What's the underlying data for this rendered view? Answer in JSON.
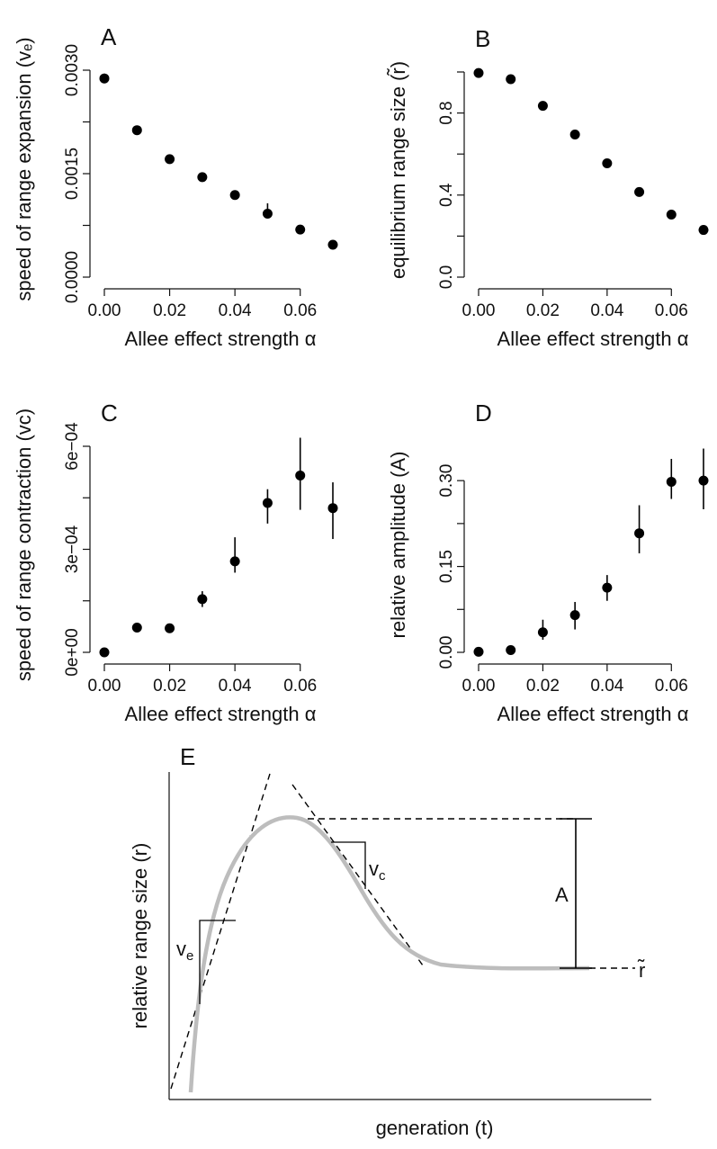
{
  "chart_data": [
    {
      "id": "A",
      "type": "scatter",
      "panel_label": "A",
      "xlabel": "Allee effect strength α",
      "ylabel": "speed of range expansion (vₑ)",
      "xlim": [
        0,
        0.07
      ],
      "ylim": [
        0,
        0.003
      ],
      "xticks": [
        0,
        0.02,
        0.04,
        0.06
      ],
      "xtick_labels": [
        "0.00",
        "0.02",
        "0.04",
        "0.06"
      ],
      "yticks": [
        0,
        0.0015,
        0.003
      ],
      "ytick_labels": [
        "0.0000",
        "0.0015",
        "0.0030"
      ],
      "yticks_unlabeled": [
        0.00075,
        0.00225
      ],
      "x": [
        0,
        0.01,
        0.02,
        0.03,
        0.04,
        0.05,
        0.06,
        0.07
      ],
      "y": [
        0.00288,
        0.00213,
        0.00171,
        0.00145,
        0.00119,
        0.00092,
        0.00069,
        0.00047
      ],
      "err_low": [
        0.00281,
        0.00213,
        0.00171,
        0.00139,
        0.00119,
        0.00086,
        0.00069,
        0.00042
      ],
      "err_high": [
        0.00295,
        0.00213,
        0.00171,
        0.00151,
        0.00119,
        0.00107,
        0.00069,
        0.00052
      ]
    },
    {
      "id": "B",
      "type": "scatter",
      "panel_label": "B",
      "xlabel": "Allee effect strength α",
      "ylabel": "equilibrium range size (r̃)",
      "xlim": [
        0,
        0.07
      ],
      "ylim": [
        0,
        1.0
      ],
      "xticks": [
        0,
        0.02,
        0.04,
        0.06
      ],
      "xtick_labels": [
        "0.00",
        "0.02",
        "0.04",
        "0.06"
      ],
      "yticks": [
        0,
        0.4,
        0.8
      ],
      "ytick_labels": [
        "0.0",
        "0.4",
        "0.8"
      ],
      "yticks_unlabeled": [
        0.2,
        0.6,
        1.0
      ],
      "x": [
        0,
        0.01,
        0.02,
        0.03,
        0.04,
        0.05,
        0.06,
        0.07
      ],
      "y": [
        0.995,
        0.965,
        0.835,
        0.695,
        0.555,
        0.415,
        0.305,
        0.23
      ],
      "err_low": [
        0.995,
        0.965,
        0.835,
        0.695,
        0.555,
        0.415,
        0.305,
        0.23
      ],
      "err_high": [
        0.995,
        0.965,
        0.835,
        0.695,
        0.555,
        0.415,
        0.305,
        0.23
      ]
    },
    {
      "id": "C",
      "type": "scatter",
      "panel_label": "C",
      "xlabel": "Allee effect strength α",
      "ylabel": "speed of range contraction (vᴄ)",
      "xlim": [
        0,
        0.07
      ],
      "ylim": [
        0,
        0.0006
      ],
      "xticks": [
        0,
        0.02,
        0.04,
        0.06
      ],
      "xtick_labels": [
        "0.00",
        "0.02",
        "0.04",
        "0.06"
      ],
      "yticks": [
        0,
        0.0003,
        0.0006
      ],
      "ytick_labels": [
        "0e+00",
        "3e−04",
        "6e−04"
      ],
      "yticks_unlabeled": [
        0.00015,
        0.00045
      ],
      "x": [
        0,
        0.01,
        0.02,
        0.03,
        0.04,
        0.05,
        0.06,
        0.07
      ],
      "y": [
        0.0,
        7.2e-05,
        7e-05,
        0.000155,
        0.000265,
        0.000435,
        0.000515,
        0.00042
      ],
      "err_low": [
        0.0,
        7.2e-05,
        7e-05,
        0.000132,
        0.000232,
        0.000375,
        0.000415,
        0.00033
      ],
      "err_high": [
        0.0,
        7.2e-05,
        7e-05,
        0.000178,
        0.000335,
        0.000475,
        0.000625,
        0.000495
      ]
    },
    {
      "id": "D",
      "type": "scatter",
      "panel_label": "D",
      "xlabel": "Allee effect strength α",
      "ylabel": "relative amplitude (A)",
      "xlim": [
        0,
        0.07
      ],
      "ylim": [
        0,
        0.36
      ],
      "xticks": [
        0,
        0.02,
        0.04,
        0.06
      ],
      "xtick_labels": [
        "0.00",
        "0.02",
        "0.04",
        "0.06"
      ],
      "yticks": [
        0,
        0.15,
        0.3
      ],
      "ytick_labels": [
        "0.00",
        "0.15",
        "0.30"
      ],
      "yticks_unlabeled": [
        0.075,
        0.225
      ],
      "x": [
        0,
        0.01,
        0.02,
        0.03,
        0.04,
        0.05,
        0.06,
        0.07
      ],
      "y": [
        0.001,
        0.004,
        0.035,
        0.065,
        0.113,
        0.208,
        0.298,
        0.3
      ],
      "err_low": [
        0.001,
        0.004,
        0.022,
        0.04,
        0.09,
        0.173,
        0.268,
        0.25
      ],
      "err_high": [
        0.001,
        0.004,
        0.057,
        0.088,
        0.135,
        0.257,
        0.338,
        0.356
      ]
    }
  ],
  "schematic": {
    "panel_label": "E",
    "xlabel": "generation (t)",
    "ylabel": "relative range size (r)",
    "label_ve": "v",
    "label_ve_sub": "e",
    "label_vc": "v",
    "label_vc_sub": "c",
    "label_A": "A",
    "label_rtilde": "r̃",
    "curve_color": "#bdbdbd"
  }
}
